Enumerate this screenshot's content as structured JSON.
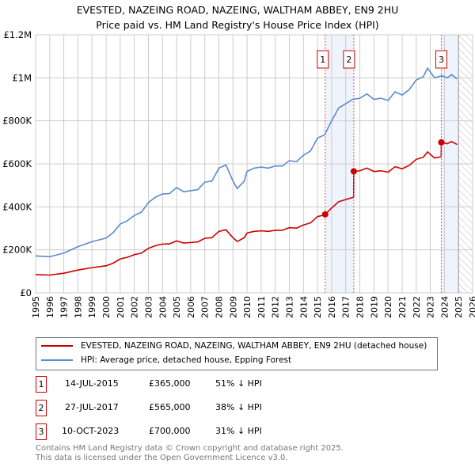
{
  "title": "EVESTED, NAZEING ROAD, NAZEING, WALTHAM ABBEY, EN9 2HU",
  "subtitle": "Price paid vs. HM Land Registry's House Price Index (HPI)",
  "chart_data": {
    "type": "line",
    "xlim": [
      1995,
      2026
    ],
    "ylim": [
      0,
      1200000
    ],
    "yticks": [
      {
        "v": 0,
        "label": "£0"
      },
      {
        "v": 200000,
        "label": "£200K"
      },
      {
        "v": 400000,
        "label": "£400K"
      },
      {
        "v": 600000,
        "label": "£600K"
      },
      {
        "v": 800000,
        "label": "£800K"
      },
      {
        "v": 1000000,
        "label": "£1M"
      },
      {
        "v": 1200000,
        "label": "£1.2M"
      }
    ],
    "xticks": [
      "1995",
      "1996",
      "1997",
      "1998",
      "1999",
      "2000",
      "2001",
      "2002",
      "2003",
      "2004",
      "2005",
      "2006",
      "2007",
      "2008",
      "2009",
      "2010",
      "2011",
      "2012",
      "2013",
      "2014",
      "2015",
      "2016",
      "2017",
      "2018",
      "2019",
      "2020",
      "2021",
      "2022",
      "2023",
      "2024",
      "2025",
      "2026"
    ],
    "hpi": {
      "name": "HPI: Average price, detached house, Epping Forest",
      "color": "#5b8bd0",
      "points": [
        [
          1995,
          172000
        ],
        [
          1996,
          168000
        ],
        [
          1997,
          185000
        ],
        [
          1998,
          215000
        ],
        [
          1999,
          238000
        ],
        [
          2000,
          255000
        ],
        [
          2000.5,
          280000
        ],
        [
          2001,
          320000
        ],
        [
          2001.5,
          335000
        ],
        [
          2002,
          360000
        ],
        [
          2002.5,
          375000
        ],
        [
          2003,
          420000
        ],
        [
          2003.5,
          445000
        ],
        [
          2004,
          460000
        ],
        [
          2004.5,
          462000
        ],
        [
          2005,
          490000
        ],
        [
          2005.5,
          470000
        ],
        [
          2006,
          475000
        ],
        [
          2006.5,
          480000
        ],
        [
          2007,
          515000
        ],
        [
          2007.5,
          520000
        ],
        [
          2008,
          580000
        ],
        [
          2008.5,
          595000
        ],
        [
          2009,
          520000
        ],
        [
          2009.3,
          485000
        ],
        [
          2009.8,
          520000
        ],
        [
          2010,
          565000
        ],
        [
          2010.5,
          580000
        ],
        [
          2011,
          585000
        ],
        [
          2011.5,
          580000
        ],
        [
          2012,
          590000
        ],
        [
          2012.5,
          590000
        ],
        [
          2013,
          615000
        ],
        [
          2013.5,
          610000
        ],
        [
          2014,
          640000
        ],
        [
          2014.5,
          660000
        ],
        [
          2015,
          720000
        ],
        [
          2015.5,
          735000
        ],
        [
          2016,
          800000
        ],
        [
          2016.5,
          860000
        ],
        [
          2017,
          880000
        ],
        [
          2017.5,
          900000
        ],
        [
          2018,
          905000
        ],
        [
          2018.5,
          925000
        ],
        [
          2019,
          900000
        ],
        [
          2019.5,
          905000
        ],
        [
          2020,
          895000
        ],
        [
          2020.5,
          935000
        ],
        [
          2021,
          920000
        ],
        [
          2021.5,
          945000
        ],
        [
          2022,
          990000
        ],
        [
          2022.5,
          1005000
        ],
        [
          2022.8,
          1045000
        ],
        [
          2023.3,
          1000000
        ],
        [
          2023.8,
          1010000
        ],
        [
          2024.2,
          1000000
        ],
        [
          2024.5,
          1015000
        ],
        [
          2024.9,
          995000
        ]
      ]
    },
    "property": {
      "name": "EVESTED, NAZEING ROAD, NAZEING, WALTHAM ABBEY, EN9 2HU (detached house)",
      "color": "#cc0000"
    },
    "sales": [
      {
        "id": "1",
        "x": 2015.54,
        "date": "14-JUL-2015",
        "price": 365000,
        "price_label": "£365,000",
        "hpi_label": "51% ↓ HPI"
      },
      {
        "id": "2",
        "x": 2017.57,
        "date": "27-JUL-2017",
        "price": 565000,
        "price_label": "£565,000",
        "hpi_label": "38% ↓ HPI"
      },
      {
        "id": "3",
        "x": 2023.78,
        "date": "10-OCT-2023",
        "price": 700000,
        "price_label": "£700,000",
        "hpi_label": "31% ↓ HPI"
      }
    ],
    "forecast_from": 2025
  },
  "footer": [
    "Contains HM Land Registry data © Crown copyright and database right 2025.",
    "This data is licensed under the Open Government Licence v3.0."
  ]
}
